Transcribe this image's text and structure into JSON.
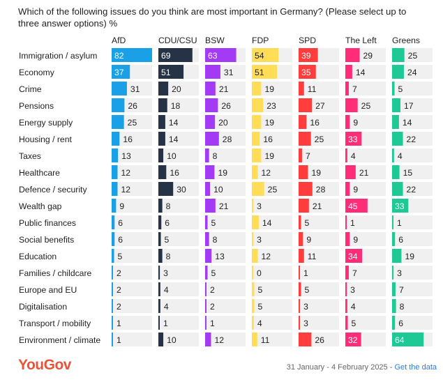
{
  "title": "Which of the following issues do you think are most important in Germany? (Please select up to three answer options) %",
  "footer": {
    "logo": "YouGov",
    "date": "31 January - 4 February 2025",
    "separator": " - ",
    "link": "Get the data"
  },
  "chart_data": {
    "type": "bar",
    "categories": [
      "Immigration / asylum",
      "Economy",
      "Crime",
      "Pensions",
      "Energy supply",
      "Housing / rent",
      "Taxes",
      "Healthcare",
      "Defence / security",
      "Wealth gap",
      "Public finances",
      "Social benefits",
      "Education",
      "Families / childcare",
      "Europe and EU",
      "Digitalisation",
      "Transport / mobility",
      "Environment / climate"
    ],
    "series": [
      {
        "name": "AfD",
        "color": "#1aa0e6",
        "values": [
          82,
          37,
          31,
          26,
          25,
          16,
          13,
          12,
          12,
          9,
          6,
          6,
          5,
          2,
          2,
          2,
          1,
          1
        ]
      },
      {
        "name": "CDU/CSU",
        "color": "#263346",
        "values": [
          69,
          51,
          20,
          18,
          14,
          14,
          10,
          16,
          30,
          8,
          6,
          5,
          8,
          3,
          4,
          4,
          1,
          10
        ]
      },
      {
        "name": "BSW",
        "color": "#a33bf5",
        "values": [
          63,
          31,
          21,
          26,
          20,
          28,
          8,
          19,
          10,
          21,
          5,
          8,
          13,
          5,
          2,
          2,
          1,
          12
        ]
      },
      {
        "name": "FDP",
        "color": "#ffdd57",
        "values": [
          54,
          51,
          19,
          23,
          19,
          16,
          19,
          12,
          25,
          3,
          14,
          3,
          12,
          0,
          5,
          5,
          4,
          11
        ]
      },
      {
        "name": "SPD",
        "color": "#ff3d3d",
        "values": [
          39,
          35,
          11,
          27,
          16,
          25,
          7,
          19,
          28,
          21,
          5,
          9,
          11,
          1,
          5,
          3,
          3,
          26
        ]
      },
      {
        "name": "The Left",
        "color": "#ff2d78",
        "values": [
          29,
          14,
          7,
          25,
          9,
          33,
          4,
          21,
          9,
          45,
          1,
          9,
          34,
          7,
          3,
          4,
          5,
          32
        ]
      },
      {
        "name": "Greens",
        "color": "#1fc996",
        "values": [
          25,
          24,
          5,
          17,
          14,
          22,
          4,
          15,
          22,
          33,
          1,
          6,
          19,
          3,
          7,
          8,
          6,
          64
        ]
      }
    ],
    "xlim": [
      0,
      82
    ]
  }
}
